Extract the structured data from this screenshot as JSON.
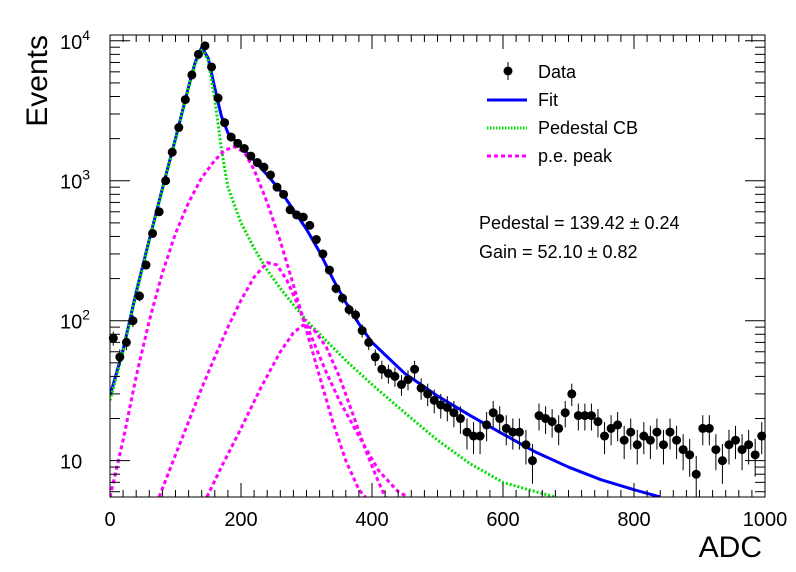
{
  "chart_data": {
    "type": "scatter",
    "xlabel": "ADC",
    "ylabel": "Events",
    "xlim": [
      0,
      1000
    ],
    "ylim": [
      5.5,
      11000
    ],
    "yscale": "log",
    "x_ticks": [
      "0",
      "200",
      "400",
      "600",
      "800",
      "1000"
    ],
    "y_ticks": [
      {
        "base": "10",
        "exp": "",
        "value": 10
      },
      {
        "base": "10",
        "exp": "2",
        "value": 100
      },
      {
        "base": "10",
        "exp": "3",
        "value": 1000
      },
      {
        "base": "10",
        "exp": "4",
        "value": 10000
      }
    ],
    "legend": {
      "placement": "top-right",
      "entries": [
        {
          "label": "Data",
          "style": "marker",
          "color": "#000000"
        },
        {
          "label": "Fit",
          "style": "solid",
          "color": "#0000ff"
        },
        {
          "label": "Pedestal CB",
          "style": "dotted",
          "color": "#00e000"
        },
        {
          "label": "p.e. peak",
          "style": "dashed",
          "color": "#ff00ff"
        }
      ]
    },
    "annotations": [
      {
        "text": "Pedestal = 139.42",
        "pm": "±",
        "err": "0.24"
      },
      {
        "text": "Gain = 52.10",
        "pm": "±",
        "err": "0.82"
      }
    ],
    "series": [
      {
        "name": "Data",
        "style": "points",
        "color": "#000000",
        "points": [
          {
            "x": 5,
            "y": 75
          },
          {
            "x": 15,
            "y": 55
          },
          {
            "x": 25,
            "y": 70
          },
          {
            "x": 35,
            "y": 100
          },
          {
            "x": 45,
            "y": 150
          },
          {
            "x": 55,
            "y": 250
          },
          {
            "x": 65,
            "y": 420
          },
          {
            "x": 75,
            "y": 600
          },
          {
            "x": 85,
            "y": 1000
          },
          {
            "x": 95,
            "y": 1600
          },
          {
            "x": 105,
            "y": 2400
          },
          {
            "x": 115,
            "y": 3800
          },
          {
            "x": 125,
            "y": 5700
          },
          {
            "x": 135,
            "y": 8000
          },
          {
            "x": 145,
            "y": 9200
          },
          {
            "x": 155,
            "y": 6500
          },
          {
            "x": 165,
            "y": 3900
          },
          {
            "x": 175,
            "y": 2600
          },
          {
            "x": 185,
            "y": 2050
          },
          {
            "x": 195,
            "y": 1850
          },
          {
            "x": 205,
            "y": 1700
          },
          {
            "x": 215,
            "y": 1500
          },
          {
            "x": 225,
            "y": 1350
          },
          {
            "x": 235,
            "y": 1250
          },
          {
            "x": 245,
            "y": 1100
          },
          {
            "x": 255,
            "y": 900
          },
          {
            "x": 265,
            "y": 800
          },
          {
            "x": 275,
            "y": 620
          },
          {
            "x": 285,
            "y": 570
          },
          {
            "x": 295,
            "y": 550
          },
          {
            "x": 305,
            "y": 480
          },
          {
            "x": 315,
            "y": 380
          },
          {
            "x": 325,
            "y": 300
          },
          {
            "x": 335,
            "y": 230
          },
          {
            "x": 345,
            "y": 170
          },
          {
            "x": 355,
            "y": 145
          },
          {
            "x": 365,
            "y": 120
          },
          {
            "x": 375,
            "y": 110
          },
          {
            "x": 385,
            "y": 85
          },
          {
            "x": 395,
            "y": 70
          },
          {
            "x": 405,
            "y": 55
          },
          {
            "x": 415,
            "y": 45
          },
          {
            "x": 425,
            "y": 42
          },
          {
            "x": 435,
            "y": 40
          },
          {
            "x": 445,
            "y": 35
          },
          {
            "x": 455,
            "y": 38
          },
          {
            "x": 465,
            "y": 45
          },
          {
            "x": 475,
            "y": 33
          },
          {
            "x": 485,
            "y": 30
          },
          {
            "x": 495,
            "y": 27
          },
          {
            "x": 505,
            "y": 25
          },
          {
            "x": 515,
            "y": 24
          },
          {
            "x": 525,
            "y": 22
          },
          {
            "x": 535,
            "y": 20
          },
          {
            "x": 545,
            "y": 16
          },
          {
            "x": 555,
            "y": 15
          },
          {
            "x": 565,
            "y": 15
          },
          {
            "x": 575,
            "y": 18
          },
          {
            "x": 585,
            "y": 22
          },
          {
            "x": 595,
            "y": 20
          },
          {
            "x": 605,
            "y": 17
          },
          {
            "x": 615,
            "y": 16
          },
          {
            "x": 625,
            "y": 16
          },
          {
            "x": 635,
            "y": 13
          },
          {
            "x": 645,
            "y": 10
          },
          {
            "x": 655,
            "y": 21
          },
          {
            "x": 665,
            "y": 20
          },
          {
            "x": 675,
            "y": 19
          },
          {
            "x": 685,
            "y": 17
          },
          {
            "x": 695,
            "y": 22
          },
          {
            "x": 705,
            "y": 30
          },
          {
            "x": 715,
            "y": 21
          },
          {
            "x": 725,
            "y": 21
          },
          {
            "x": 735,
            "y": 21
          },
          {
            "x": 745,
            "y": 19
          },
          {
            "x": 755,
            "y": 15
          },
          {
            "x": 765,
            "y": 17
          },
          {
            "x": 775,
            "y": 18
          },
          {
            "x": 785,
            "y": 14
          },
          {
            "x": 795,
            "y": 16
          },
          {
            "x": 805,
            "y": 13
          },
          {
            "x": 815,
            "y": 15
          },
          {
            "x": 825,
            "y": 14
          },
          {
            "x": 835,
            "y": 16
          },
          {
            "x": 845,
            "y": 13
          },
          {
            "x": 855,
            "y": 16
          },
          {
            "x": 865,
            "y": 14
          },
          {
            "x": 875,
            "y": 12
          },
          {
            "x": 885,
            "y": 11
          },
          {
            "x": 895,
            "y": 8
          },
          {
            "x": 905,
            "y": 17
          },
          {
            "x": 915,
            "y": 17
          },
          {
            "x": 925,
            "y": 12
          },
          {
            "x": 935,
            "y": 10
          },
          {
            "x": 945,
            "y": 13
          },
          {
            "x": 955,
            "y": 14
          },
          {
            "x": 965,
            "y": 12
          },
          {
            "x": 975,
            "y": 13
          },
          {
            "x": 985,
            "y": 11
          },
          {
            "x": 995,
            "y": 15
          }
        ]
      },
      {
        "name": "Fit",
        "style": "solid",
        "color": "#0000ff",
        "points": [
          {
            "x": 0,
            "y": 29
          },
          {
            "x": 20,
            "y": 62
          },
          {
            "x": 40,
            "y": 160
          },
          {
            "x": 60,
            "y": 380
          },
          {
            "x": 80,
            "y": 880
          },
          {
            "x": 100,
            "y": 2000
          },
          {
            "x": 120,
            "y": 4700
          },
          {
            "x": 130,
            "y": 7000
          },
          {
            "x": 140,
            "y": 9000
          },
          {
            "x": 150,
            "y": 7500
          },
          {
            "x": 160,
            "y": 4600
          },
          {
            "x": 170,
            "y": 2900
          },
          {
            "x": 180,
            "y": 2200
          },
          {
            "x": 200,
            "y": 1750
          },
          {
            "x": 220,
            "y": 1400
          },
          {
            "x": 240,
            "y": 1100
          },
          {
            "x": 260,
            "y": 850
          },
          {
            "x": 280,
            "y": 620
          },
          {
            "x": 300,
            "y": 450
          },
          {
            "x": 320,
            "y": 310
          },
          {
            "x": 340,
            "y": 200
          },
          {
            "x": 360,
            "y": 135
          },
          {
            "x": 380,
            "y": 95
          },
          {
            "x": 400,
            "y": 70
          },
          {
            "x": 450,
            "y": 42
          },
          {
            "x": 500,
            "y": 29
          },
          {
            "x": 550,
            "y": 21
          },
          {
            "x": 600,
            "y": 15.5
          },
          {
            "x": 650,
            "y": 11.5
          },
          {
            "x": 700,
            "y": 9
          },
          {
            "x": 750,
            "y": 7.3
          },
          {
            "x": 800,
            "y": 6.2
          },
          {
            "x": 840,
            "y": 5.5
          }
        ]
      },
      {
        "name": "Pedestal CB",
        "style": "dotted",
        "color": "#00e000",
        "points": [
          {
            "x": 0,
            "y": 27
          },
          {
            "x": 20,
            "y": 60
          },
          {
            "x": 40,
            "y": 155
          },
          {
            "x": 60,
            "y": 370
          },
          {
            "x": 80,
            "y": 860
          },
          {
            "x": 100,
            "y": 1950
          },
          {
            "x": 120,
            "y": 4600
          },
          {
            "x": 130,
            "y": 6800
          },
          {
            "x": 140,
            "y": 8800
          },
          {
            "x": 150,
            "y": 7200
          },
          {
            "x": 160,
            "y": 3800
          },
          {
            "x": 170,
            "y": 1700
          },
          {
            "x": 180,
            "y": 900
          },
          {
            "x": 200,
            "y": 500
          },
          {
            "x": 220,
            "y": 330
          },
          {
            "x": 240,
            "y": 230
          },
          {
            "x": 260,
            "y": 170
          },
          {
            "x": 280,
            "y": 130
          },
          {
            "x": 300,
            "y": 100
          },
          {
            "x": 330,
            "y": 72
          },
          {
            "x": 360,
            "y": 52
          },
          {
            "x": 400,
            "y": 35
          },
          {
            "x": 450,
            "y": 22
          },
          {
            "x": 500,
            "y": 14
          },
          {
            "x": 550,
            "y": 9.5
          },
          {
            "x": 600,
            "y": 7
          },
          {
            "x": 650,
            "y": 6
          },
          {
            "x": 680,
            "y": 5.5
          }
        ]
      },
      {
        "name": "p.e. peak",
        "style": "dashed",
        "color": "#ff00ff",
        "points": [
          {
            "x": 0,
            "y": 5.5
          },
          {
            "x": 20,
            "y": 14
          },
          {
            "x": 40,
            "y": 40
          },
          {
            "x": 60,
            "y": 100
          },
          {
            "x": 80,
            "y": 220
          },
          {
            "x": 100,
            "y": 420
          },
          {
            "x": 120,
            "y": 700
          },
          {
            "x": 140,
            "y": 1050
          },
          {
            "x": 160,
            "y": 1400
          },
          {
            "x": 175,
            "y": 1650
          },
          {
            "x": 190,
            "y": 1750
          },
          {
            "x": 205,
            "y": 1600
          },
          {
            "x": 220,
            "y": 1200
          },
          {
            "x": 240,
            "y": 700
          },
          {
            "x": 260,
            "y": 370
          },
          {
            "x": 280,
            "y": 180
          },
          {
            "x": 300,
            "y": 85
          },
          {
            "x": 320,
            "y": 40
          },
          {
            "x": 340,
            "y": 19
          },
          {
            "x": 360,
            "y": 10
          },
          {
            "x": 380,
            "y": 6.2
          },
          {
            "x": 390,
            "y": 5.5
          }
        ]
      },
      {
        "name": "p.e. peak",
        "style": "dashed",
        "color": "#ff00ff",
        "points": [
          {
            "x": 75,
            "y": 5.5
          },
          {
            "x": 100,
            "y": 11
          },
          {
            "x": 120,
            "y": 19
          },
          {
            "x": 140,
            "y": 33
          },
          {
            "x": 160,
            "y": 55
          },
          {
            "x": 180,
            "y": 90
          },
          {
            "x": 200,
            "y": 140
          },
          {
            "x": 220,
            "y": 205
          },
          {
            "x": 240,
            "y": 260
          },
          {
            "x": 255,
            "y": 250
          },
          {
            "x": 270,
            "y": 195
          },
          {
            "x": 290,
            "y": 120
          },
          {
            "x": 310,
            "y": 72
          },
          {
            "x": 330,
            "y": 43
          },
          {
            "x": 350,
            "y": 27
          },
          {
            "x": 380,
            "y": 15
          },
          {
            "x": 410,
            "y": 8.5
          },
          {
            "x": 440,
            "y": 6
          },
          {
            "x": 455,
            "y": 5.5
          }
        ]
      },
      {
        "name": "p.e. peak",
        "style": "dashed",
        "color": "#ff00ff",
        "points": [
          {
            "x": 148,
            "y": 5.5
          },
          {
            "x": 170,
            "y": 9
          },
          {
            "x": 200,
            "y": 17
          },
          {
            "x": 230,
            "y": 33
          },
          {
            "x": 260,
            "y": 60
          },
          {
            "x": 280,
            "y": 82
          },
          {
            "x": 295,
            "y": 93
          },
          {
            "x": 310,
            "y": 88
          },
          {
            "x": 330,
            "y": 65
          },
          {
            "x": 350,
            "y": 40
          },
          {
            "x": 370,
            "y": 22
          },
          {
            "x": 390,
            "y": 12
          },
          {
            "x": 405,
            "y": 8
          },
          {
            "x": 420,
            "y": 5.5
          }
        ]
      }
    ]
  }
}
